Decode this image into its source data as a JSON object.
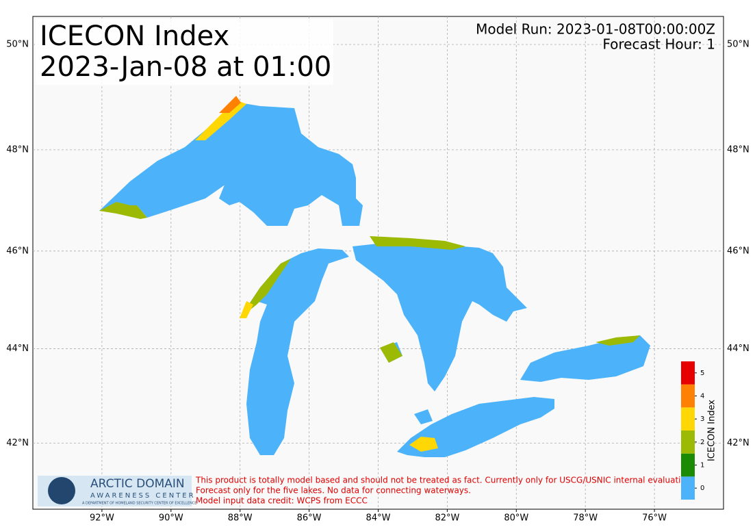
{
  "header": {
    "title_lines": [
      "ICECON Index",
      "2023-Jan-08 at 01:00"
    ],
    "model_run": "Model Run: 2023-01-08T00:00:00Z",
    "forecast_hour": "Forecast Hour: 1"
  },
  "map": {
    "lonlim": [
      -94,
      -74
    ],
    "latlim": [
      40.53,
      50.52
    ],
    "grid": true,
    "lonticks": [
      {
        "value": -92,
        "label": "92°W"
      },
      {
        "value": -90,
        "label": "90°W"
      },
      {
        "value": -88,
        "label": "88°W"
      },
      {
        "value": -86,
        "label": "86°W"
      },
      {
        "value": -84,
        "label": "84°W"
      },
      {
        "value": -82,
        "label": "82°W"
      },
      {
        "value": -80,
        "label": "80°W"
      },
      {
        "value": -78,
        "label": "78°W"
      },
      {
        "value": -76,
        "label": "76°W"
      }
    ],
    "latticks": [
      {
        "value": 42,
        "label": "42°N"
      },
      {
        "value": 44,
        "label": "44°N"
      },
      {
        "value": 46,
        "label": "46°N"
      },
      {
        "value": 48,
        "label": "48°N"
      },
      {
        "value": 50,
        "label": "50°N"
      }
    ]
  },
  "colorbar": {
    "label": "ICECON Index",
    "clim": [
      -0.5,
      5.5
    ],
    "ticks": [
      0,
      1,
      2,
      3,
      4,
      5
    ],
    "colors": [
      "#4cb3fb",
      "#1b8a04",
      "#9cb903",
      "#fed704",
      "#fe8104",
      "#e60000"
    ]
  },
  "logo": {
    "name": "ARCTIC DOMAIN",
    "sub": "AWARENESS CENTER",
    "small": "A DEPARTMENT OF HOMELAND SECURITY CENTER OF EXCELLENCE"
  },
  "disclaimer": [
    "This product is totally model based and should not be treated as fact. Currently only for USCG/USNIC internal evaluation.",
    "Forecast only for the five lakes. No data for connecting waterways.",
    "Model input data credit: WCPS from ECCC"
  ]
}
